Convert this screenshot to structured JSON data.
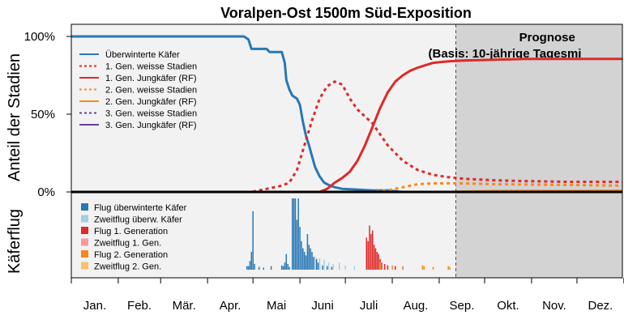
{
  "chart_data": {
    "type": "line",
    "title": "Voralpen-Ost 1500m Süd-Exposition",
    "ylabel_top": "Anteil der Stadien",
    "ylabel_bottom": "Käferflug",
    "yticks": [
      "100%",
      "50%",
      "0%"
    ],
    "ylim": [
      0,
      1.0
    ],
    "xlim": [
      1,
      365
    ],
    "months": [
      "Jan.",
      "Feb.",
      "Mär.",
      "Apr.",
      "Mai",
      "Juni",
      "Juli",
      "Aug.",
      "Sep.",
      "Okt.",
      "Nov.",
      "Dez."
    ],
    "forecast": {
      "start_day": 255,
      "title": "Prognose",
      "subtitle": "(Basis: 10-jährige Tagesmi"
    },
    "colors": {
      "overwintered": "#2878b5",
      "gen1": "#e02828",
      "gen2": "#f5891f",
      "gen3": "#6a3d9a",
      "flight_reflight_overwintered": "#a6cee3",
      "flight_reflight_gen1": "#fb9a99",
      "flight_reflight_gen2": "#fdbf6f",
      "forecast_bg": "#d3d3d3",
      "plot_bg": "#f2f2f2"
    },
    "legend_lines": [
      {
        "label": "Überwinterte Käfer",
        "color": "#2878b5",
        "dash": "solid"
      },
      {
        "label": "1. Gen. weisse Stadien",
        "color": "#e02828",
        "dash": "dotted"
      },
      {
        "label": "1. Gen. Jungkäfer (RF)",
        "color": "#e02828",
        "dash": "solid"
      },
      {
        "label": "2. Gen. weisse Stadien",
        "color": "#f5891f",
        "dash": "dotted"
      },
      {
        "label": "2. Gen. Jungkäfer (RF)",
        "color": "#f5891f",
        "dash": "solid"
      },
      {
        "label": "3. Gen. weisse Stadien",
        "color": "#6a3d9a",
        "dash": "dotted"
      },
      {
        "label": "3. Gen. Jungkäfer (RF)",
        "color": "#6a3d9a",
        "dash": "solid"
      }
    ],
    "legend_flight": [
      {
        "label": "Flug überwinterte Käfer",
        "color": "#2878b5"
      },
      {
        "label": "Zweitflug überw. Käfer",
        "color": "#a6cee3"
      },
      {
        "label": "Flug 1. Generation",
        "color": "#e02828"
      },
      {
        "label": "Zweitflug 1. Gen.",
        "color": "#fb9a99"
      },
      {
        "label": "Flug 2. Generation",
        "color": "#f5891f"
      },
      {
        "label": "Zweitflug 2. Gen.",
        "color": "#fdbf6f"
      }
    ],
    "series": [
      {
        "name": "Überwinterte Käfer",
        "color": "#2878b5",
        "dash": "solid",
        "x": [
          1,
          115,
          118,
          120,
          130,
          132,
          140,
          142,
          143,
          145,
          147,
          150,
          152,
          154,
          156,
          158,
          160,
          162,
          165,
          168,
          172,
          175,
          180,
          190,
          200,
          210,
          220
        ],
        "y": [
          1.0,
          1.0,
          0.98,
          0.92,
          0.92,
          0.9,
          0.9,
          0.83,
          0.72,
          0.66,
          0.62,
          0.6,
          0.56,
          0.45,
          0.36,
          0.3,
          0.23,
          0.16,
          0.1,
          0.06,
          0.04,
          0.03,
          0.02,
          0.015,
          0.01,
          0.01,
          0.0
        ]
      },
      {
        "name": "1. Gen. weisse Stadien",
        "color": "#e02828",
        "dash": "dotted",
        "x": [
          1,
          120,
          130,
          140,
          145,
          150,
          155,
          160,
          165,
          170,
          175,
          180,
          185,
          190,
          200,
          210,
          220,
          230,
          240,
          250,
          260,
          280,
          300,
          330,
          365
        ],
        "y": [
          0.0,
          0.0,
          0.02,
          0.04,
          0.06,
          0.14,
          0.3,
          0.46,
          0.6,
          0.68,
          0.71,
          0.69,
          0.6,
          0.53,
          0.44,
          0.3,
          0.2,
          0.14,
          0.11,
          0.095,
          0.085,
          0.075,
          0.07,
          0.065,
          0.065
        ]
      },
      {
        "name": "1. Gen. Jungkäfer (RF)",
        "color": "#e02828",
        "dash": "solid",
        "x": [
          1,
          165,
          170,
          175,
          180,
          185,
          190,
          195,
          200,
          205,
          210,
          215,
          220,
          225,
          230,
          240,
          250,
          260,
          280,
          300,
          330,
          365
        ],
        "y": [
          0.0,
          0.0,
          0.02,
          0.06,
          0.09,
          0.13,
          0.2,
          0.3,
          0.42,
          0.54,
          0.64,
          0.71,
          0.75,
          0.78,
          0.8,
          0.83,
          0.84,
          0.845,
          0.85,
          0.855,
          0.855,
          0.855
        ]
      },
      {
        "name": "2. Gen. weisse Stadien",
        "color": "#f5891f",
        "dash": "dotted",
        "x": [
          1,
          200,
          210,
          220,
          230,
          240,
          250,
          260,
          280,
          300,
          330,
          365
        ],
        "y": [
          0.0,
          0.0,
          0.01,
          0.03,
          0.05,
          0.055,
          0.055,
          0.055,
          0.05,
          0.048,
          0.045,
          0.04
        ]
      },
      {
        "name": "2. Gen. Jungkäfer (RF)",
        "color": "#f5891f",
        "dash": "solid",
        "x": [
          1,
          250,
          260,
          280,
          300,
          330,
          365
        ],
        "y": [
          0.0,
          0.0,
          0.002,
          0.005,
          0.006,
          0.007,
          0.008
        ]
      },
      {
        "name": "3. Gen. weisse Stadien",
        "color": "#6a3d9a",
        "dash": "dotted",
        "x": [
          1,
          365
        ],
        "y": [
          0.0,
          0.0
        ]
      },
      {
        "name": "3. Gen. Jungkäfer (RF)",
        "color": "#6a3d9a",
        "dash": "solid",
        "x": [
          1,
          365
        ],
        "y": [
          0.0,
          0.0
        ]
      }
    ],
    "flight_bars": {
      "ymax": 1.0,
      "bars": [
        [
          117,
          0.05,
          "#2878b5"
        ],
        [
          118,
          0.05,
          "#2878b5"
        ],
        [
          119,
          0.12,
          "#2878b5"
        ],
        [
          120,
          0.25,
          "#2878b5"
        ],
        [
          121,
          0.82,
          "#2878b5"
        ],
        [
          122,
          0.08,
          "#2878b5"
        ],
        [
          125,
          0.04,
          "#2878b5"
        ],
        [
          128,
          0.03,
          "#2878b5"
        ],
        [
          133,
          0.05,
          "#2878b5"
        ],
        [
          140,
          0.06,
          "#2878b5"
        ],
        [
          141,
          0.05,
          "#2878b5"
        ],
        [
          142,
          0.1,
          "#2878b5"
        ],
        [
          143,
          0.22,
          "#2878b5"
        ],
        [
          144,
          0.08,
          "#2878b5"
        ],
        [
          145,
          0.04,
          "#2878b5"
        ],
        [
          147,
          2.1,
          "#2878b5"
        ],
        [
          148,
          1.3,
          "#2878b5"
        ],
        [
          149,
          1.7,
          "#2878b5"
        ],
        [
          150,
          0.7,
          "#2878b5"
        ],
        [
          151,
          1.4,
          "#2878b5"
        ],
        [
          152,
          0.6,
          "#2878b5"
        ],
        [
          153,
          0.4,
          "#2878b5"
        ],
        [
          154,
          0.3,
          "#2878b5"
        ],
        [
          155,
          0.25,
          "#2878b5"
        ],
        [
          156,
          0.2,
          "#2878b5"
        ],
        [
          157,
          0.5,
          "#2878b5"
        ],
        [
          158,
          0.35,
          "#2878b5"
        ],
        [
          159,
          0.3,
          "#2878b5"
        ],
        [
          160,
          0.25,
          "#2878b5"
        ],
        [
          161,
          0.18,
          "#2878b5"
        ],
        [
          162,
          0.12,
          "#2878b5"
        ],
        [
          163,
          0.15,
          "#2878b5"
        ],
        [
          164,
          0.1,
          "#2878b5"
        ],
        [
          165,
          0.08,
          "#2878b5"
        ],
        [
          167,
          0.06,
          "#2878b5"
        ],
        [
          170,
          0.05,
          "#2878b5"
        ],
        [
          173,
          0.04,
          "#2878b5"
        ],
        [
          162,
          0.18,
          "#a6cee3"
        ],
        [
          165,
          0.16,
          "#a6cee3"
        ],
        [
          168,
          0.14,
          "#a6cee3"
        ],
        [
          171,
          0.1,
          "#a6cee3"
        ],
        [
          174,
          0.08,
          "#a6cee3"
        ],
        [
          178,
          0.1,
          "#a6cee3"
        ],
        [
          182,
          0.06,
          "#a6cee3"
        ],
        [
          188,
          0.05,
          "#a6cee3"
        ],
        [
          196,
          0.12,
          "#a6cee3"
        ],
        [
          198,
          0.08,
          "#a6cee3"
        ],
        [
          196,
          0.45,
          "#e02828"
        ],
        [
          197,
          0.4,
          "#e02828"
        ],
        [
          198,
          0.62,
          "#e02828"
        ],
        [
          199,
          0.5,
          "#e02828"
        ],
        [
          200,
          0.55,
          "#e02828"
        ],
        [
          201,
          0.35,
          "#e02828"
        ],
        [
          202,
          0.3,
          "#e02828"
        ],
        [
          203,
          0.25,
          "#e02828"
        ],
        [
          204,
          0.22,
          "#e02828"
        ],
        [
          205,
          0.15,
          "#e02828"
        ],
        [
          206,
          0.1,
          "#e02828"
        ],
        [
          208,
          0.08,
          "#e02828"
        ],
        [
          210,
          0.06,
          "#e02828"
        ],
        [
          215,
          0.05,
          "#e02828"
        ],
        [
          220,
          0.04,
          "#e02828"
        ],
        [
          205,
          0.1,
          "#f5891f"
        ],
        [
          213,
          0.06,
          "#f5891f"
        ],
        [
          220,
          0.05,
          "#f5891f"
        ],
        [
          233,
          0.06,
          "#f5891f"
        ],
        [
          234,
          0.05,
          "#f5891f"
        ],
        [
          240,
          0.04,
          "#f5891f"
        ],
        [
          250,
          0.05,
          "#f5891f"
        ],
        [
          251,
          0.04,
          "#f5891f"
        ]
      ]
    }
  }
}
